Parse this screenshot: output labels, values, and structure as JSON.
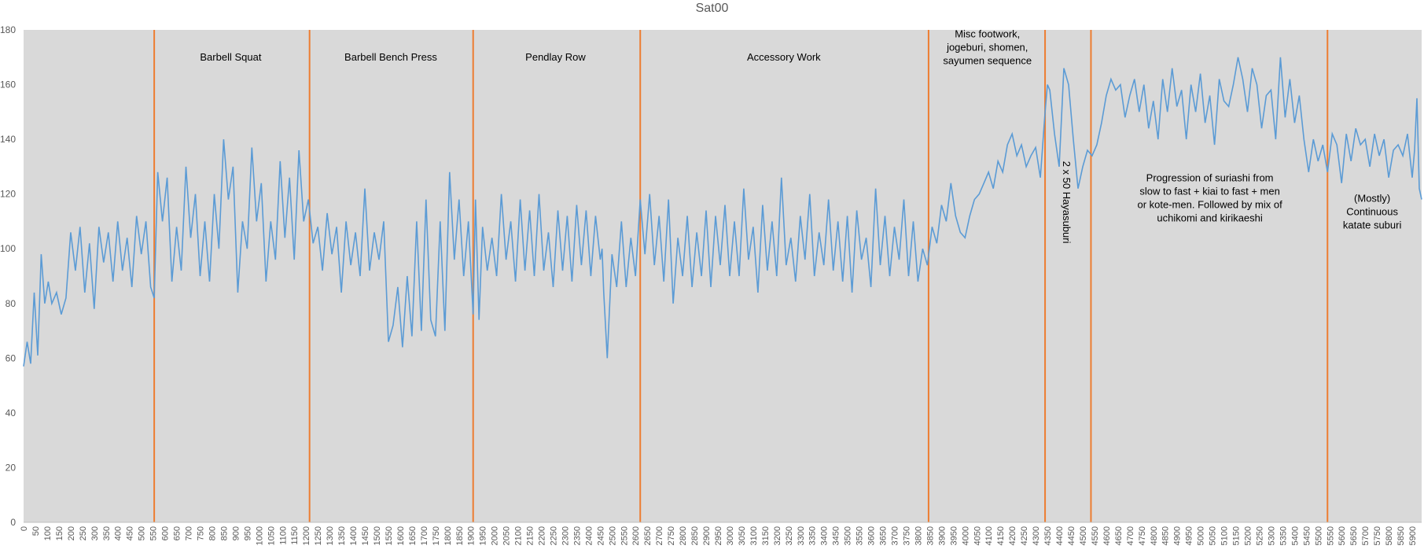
{
  "chart_data": {
    "type": "line",
    "title": "Sat00",
    "xlabel": "",
    "ylabel": "",
    "xlim": [
      0,
      5940
    ],
    "ylim": [
      0,
      180
    ],
    "y_ticks": [
      0,
      20,
      40,
      60,
      80,
      100,
      120,
      140,
      160,
      180
    ],
    "x_ticks": [
      0,
      50,
      100,
      150,
      200,
      250,
      300,
      350,
      400,
      450,
      500,
      550,
      600,
      650,
      700,
      750,
      800,
      850,
      900,
      950,
      1000,
      1050,
      1100,
      1150,
      1200,
      1250,
      1300,
      1350,
      1400,
      1450,
      1500,
      1550,
      1600,
      1650,
      1700,
      1750,
      1800,
      1850,
      1900,
      1950,
      2000,
      2050,
      2100,
      2150,
      2200,
      2250,
      2300,
      2350,
      2400,
      2450,
      2500,
      2550,
      2600,
      2650,
      2700,
      2750,
      2800,
      2850,
      2900,
      2950,
      3000,
      3050,
      3100,
      3150,
      3200,
      3250,
      3300,
      3350,
      3400,
      3450,
      3500,
      3550,
      3600,
      3650,
      3700,
      3750,
      3800,
      3850,
      3900,
      3950,
      4000,
      4050,
      4100,
      4150,
      4200,
      4250,
      4300,
      4350,
      4400,
      4450,
      4500,
      4550,
      4600,
      4650,
      4700,
      4750,
      4800,
      4850,
      4900,
      4950,
      5000,
      5050,
      5100,
      5150,
      5200,
      5250,
      5300,
      5350,
      5400,
      5450,
      5500,
      5550,
      5600,
      5650,
      5700,
      5750,
      5800,
      5850,
      5900
    ],
    "grid": false,
    "legend": "none",
    "colors": {
      "plot_bg": "#d9d9d9",
      "line": "#5b9bd5",
      "divider": "#ed7d31",
      "text": "#000000",
      "axis_text": "#595959"
    },
    "series": [
      {
        "x": [
          0,
          15,
          30,
          45,
          60,
          75,
          90,
          105,
          120,
          140,
          160,
          180,
          200,
          220,
          240,
          260,
          280,
          300,
          320,
          340,
          360,
          380,
          400,
          420,
          440,
          460,
          480,
          500,
          520,
          540,
          555,
          570,
          590,
          610,
          630,
          650,
          670,
          690,
          710,
          730,
          750,
          770,
          790,
          810,
          830,
          850,
          870,
          890,
          910,
          930,
          950,
          970,
          990,
          1010,
          1030,
          1050,
          1070,
          1090,
          1110,
          1130,
          1150,
          1170,
          1190,
          1210,
          1230,
          1250,
          1270,
          1290,
          1310,
          1330,
          1350,
          1370,
          1390,
          1410,
          1430,
          1450,
          1470,
          1490,
          1510,
          1530,
          1550,
          1570,
          1590,
          1610,
          1630,
          1650,
          1670,
          1690,
          1710,
          1730,
          1750,
          1770,
          1790,
          1810,
          1830,
          1850,
          1870,
          1890,
          1910,
          1920,
          1935,
          1950,
          1970,
          1990,
          2010,
          2030,
          2050,
          2070,
          2090,
          2110,
          2130,
          2150,
          2170,
          2190,
          2210,
          2230,
          2250,
          2270,
          2290,
          2310,
          2330,
          2350,
          2370,
          2390,
          2410,
          2430,
          2450,
          2458,
          2465,
          2480,
          2500,
          2520,
          2540,
          2560,
          2580,
          2600,
          2620,
          2640,
          2660,
          2680,
          2700,
          2720,
          2740,
          2760,
          2780,
          2800,
          2820,
          2840,
          2860,
          2880,
          2900,
          2920,
          2940,
          2960,
          2980,
          3000,
          3020,
          3040,
          3060,
          3080,
          3100,
          3120,
          3140,
          3160,
          3180,
          3200,
          3220,
          3240,
          3260,
          3280,
          3300,
          3320,
          3340,
          3360,
          3380,
          3400,
          3420,
          3440,
          3460,
          3480,
          3500,
          3520,
          3540,
          3560,
          3580,
          3600,
          3620,
          3640,
          3660,
          3680,
          3700,
          3720,
          3740,
          3760,
          3780,
          3800,
          3820,
          3840,
          3860,
          3880,
          3900,
          3920,
          3940,
          3960,
          3980,
          4000,
          4020,
          4040,
          4060,
          4080,
          4100,
          4120,
          4140,
          4160,
          4180,
          4200,
          4220,
          4240,
          4260,
          4280,
          4300,
          4320,
          4340,
          4350,
          4360,
          4380,
          4400,
          4420,
          4440,
          4460,
          4480,
          4500,
          4520,
          4540,
          4560,
          4580,
          4600,
          4620,
          4640,
          4660,
          4680,
          4700,
          4720,
          4740,
          4760,
          4780,
          4800,
          4820,
          4840,
          4860,
          4880,
          4900,
          4920,
          4940,
          4960,
          4980,
          5000,
          5020,
          5040,
          5060,
          5080,
          5100,
          5120,
          5140,
          5160,
          5180,
          5200,
          5220,
          5240,
          5260,
          5280,
          5300,
          5320,
          5340,
          5360,
          5380,
          5400,
          5420,
          5440,
          5460,
          5480,
          5500,
          5520,
          5540,
          5560,
          5580,
          5600,
          5620,
          5640,
          5660,
          5680,
          5700,
          5720,
          5740,
          5760,
          5780,
          5800,
          5820,
          5840,
          5860,
          5880,
          5900,
          5910,
          5920,
          5930,
          5940
        ],
        "y": [
          57,
          66,
          58,
          84,
          61,
          98,
          80,
          88,
          80,
          84,
          76,
          82,
          106,
          92,
          108,
          84,
          102,
          78,
          108,
          95,
          106,
          88,
          110,
          92,
          104,
          86,
          112,
          98,
          110,
          86,
          82,
          128,
          110,
          126,
          88,
          108,
          92,
          130,
          104,
          120,
          90,
          110,
          88,
          120,
          100,
          140,
          118,
          130,
          84,
          110,
          100,
          137,
          110,
          124,
          88,
          110,
          96,
          132,
          104,
          126,
          96,
          136,
          110,
          118,
          102,
          108,
          92,
          113,
          98,
          108,
          84,
          110,
          94,
          106,
          90,
          122,
          92,
          106,
          96,
          110,
          66,
          72,
          86,
          64,
          90,
          68,
          110,
          70,
          118,
          74,
          68,
          110,
          70,
          128,
          96,
          118,
          90,
          110,
          76,
          118,
          74,
          108,
          92,
          104,
          90,
          120,
          96,
          110,
          88,
          118,
          92,
          114,
          90,
          120,
          92,
          106,
          86,
          114,
          92,
          112,
          88,
          116,
          94,
          114,
          90,
          112,
          96,
          100,
          84,
          60,
          98,
          86,
          110,
          86,
          104,
          90,
          118,
          98,
          120,
          94,
          112,
          88,
          118,
          80,
          104,
          90,
          112,
          86,
          106,
          90,
          114,
          86,
          112,
          94,
          116,
          90,
          110,
          90,
          122,
          96,
          108,
          84,
          116,
          92,
          110,
          90,
          126,
          94,
          104,
          88,
          112,
          96,
          120,
          90,
          106,
          94,
          118,
          92,
          110,
          88,
          112,
          84,
          114,
          96,
          104,
          86,
          122,
          94,
          112,
          90,
          108,
          96,
          118,
          90,
          110,
          88,
          100,
          94,
          108,
          102,
          116,
          110,
          124,
          112,
          106,
          104,
          112,
          118,
          120,
          124,
          128,
          122,
          132,
          128,
          138,
          142,
          134,
          138,
          130,
          134,
          137,
          126,
          150,
          160,
          158,
          142,
          130,
          166,
          160,
          140,
          122,
          130,
          136,
          134,
          138,
          146,
          156,
          162,
          158,
          160,
          148,
          156,
          162,
          150,
          160,
          144,
          154,
          140,
          162,
          150,
          166,
          152,
          158,
          140,
          160,
          150,
          164,
          146,
          156,
          138,
          162,
          154,
          152,
          160,
          170,
          162,
          150,
          166,
          160,
          144,
          156,
          158,
          140,
          170,
          148,
          162,
          146,
          156,
          140,
          128,
          140,
          132,
          138,
          128,
          142,
          138,
          124,
          142,
          132,
          144,
          138,
          140,
          130,
          142,
          134,
          140,
          126,
          136,
          138,
          134,
          142,
          126,
          136,
          155,
          122,
          118
        ]
      }
    ],
    "annotations": {
      "boundaries": [
        555,
        1215,
        1910,
        2620,
        3845,
        4340,
        4535,
        5540
      ],
      "labels": [
        {
          "x": 880,
          "y": 170,
          "lines": [
            "Barbell Squat"
          ],
          "rotation": 0
        },
        {
          "x": 1560,
          "y": 170,
          "lines": [
            "Barbell Bench Press"
          ],
          "rotation": 0
        },
        {
          "x": 2260,
          "y": 170,
          "lines": [
            "Pendlay Row"
          ],
          "rotation": 0
        },
        {
          "x": 3230,
          "y": 170,
          "lines": [
            "Accessory Work"
          ],
          "rotation": 0
        },
        {
          "x": 4095,
          "y": 173.5,
          "lines": [
            "Misc footwork,",
            "jogeburi, shomen,",
            "sayumen sequence"
          ],
          "rotation": 0
        },
        {
          "x": 4430,
          "y": 117,
          "lines": [
            "2 x 50 Hayasuburi"
          ],
          "rotation": 90
        },
        {
          "x": 5040,
          "y": 118.5,
          "lines": [
            "Progression of suriashi from",
            "slow to fast + kiai to fast + men",
            "or kote-men. Followed by mix of",
            "uchikomi and kirikaeshi"
          ],
          "rotation": 0
        },
        {
          "x": 5730,
          "y": 113.5,
          "lines": [
            "(Mostly)",
            "Continuous",
            "katate suburi"
          ],
          "rotation": 0
        }
      ]
    }
  }
}
